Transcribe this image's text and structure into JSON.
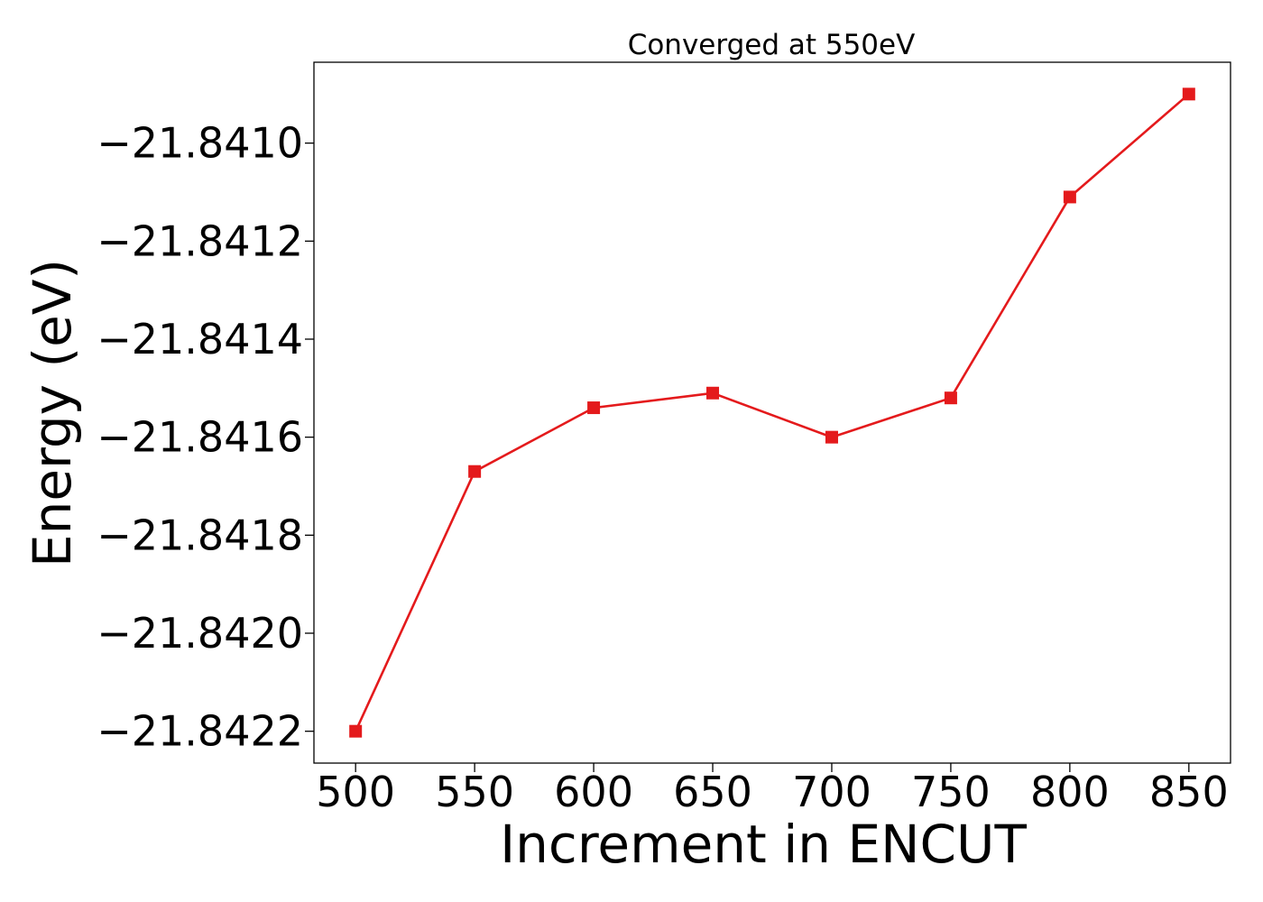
{
  "chart_data": {
    "type": "line",
    "title": "Converged at 550eV",
    "xlabel": "Increment in ENCUT",
    "ylabel": "Energy (eV)",
    "x": [
      500,
      550,
      600,
      650,
      700,
      750,
      800,
      850
    ],
    "series": [
      {
        "values": [
          -21.8422,
          -21.84167,
          -21.84154,
          -21.84151,
          -21.8416,
          -21.84152,
          -21.84111,
          -21.8409
        ],
        "color": "#e41a1c",
        "marker": "square"
      }
    ],
    "xticks": [
      500,
      550,
      600,
      650,
      700,
      750,
      800,
      850
    ],
    "xtick_labels": [
      "500",
      "550",
      "600",
      "650",
      "700",
      "750",
      "800",
      "850"
    ],
    "yticks": [
      -21.841,
      -21.8412,
      -21.8414,
      -21.8416,
      -21.8418,
      -21.842,
      -21.8422
    ],
    "ytick_labels": [
      "−21.8410",
      "−21.8412",
      "−21.8414",
      "−21.8416",
      "−21.8418",
      "−21.8420",
      "−21.8422"
    ],
    "xlim": [
      482.5,
      867.5
    ],
    "ylim": [
      -21.842265,
      -21.840835
    ],
    "grid": false,
    "legend": false
  }
}
